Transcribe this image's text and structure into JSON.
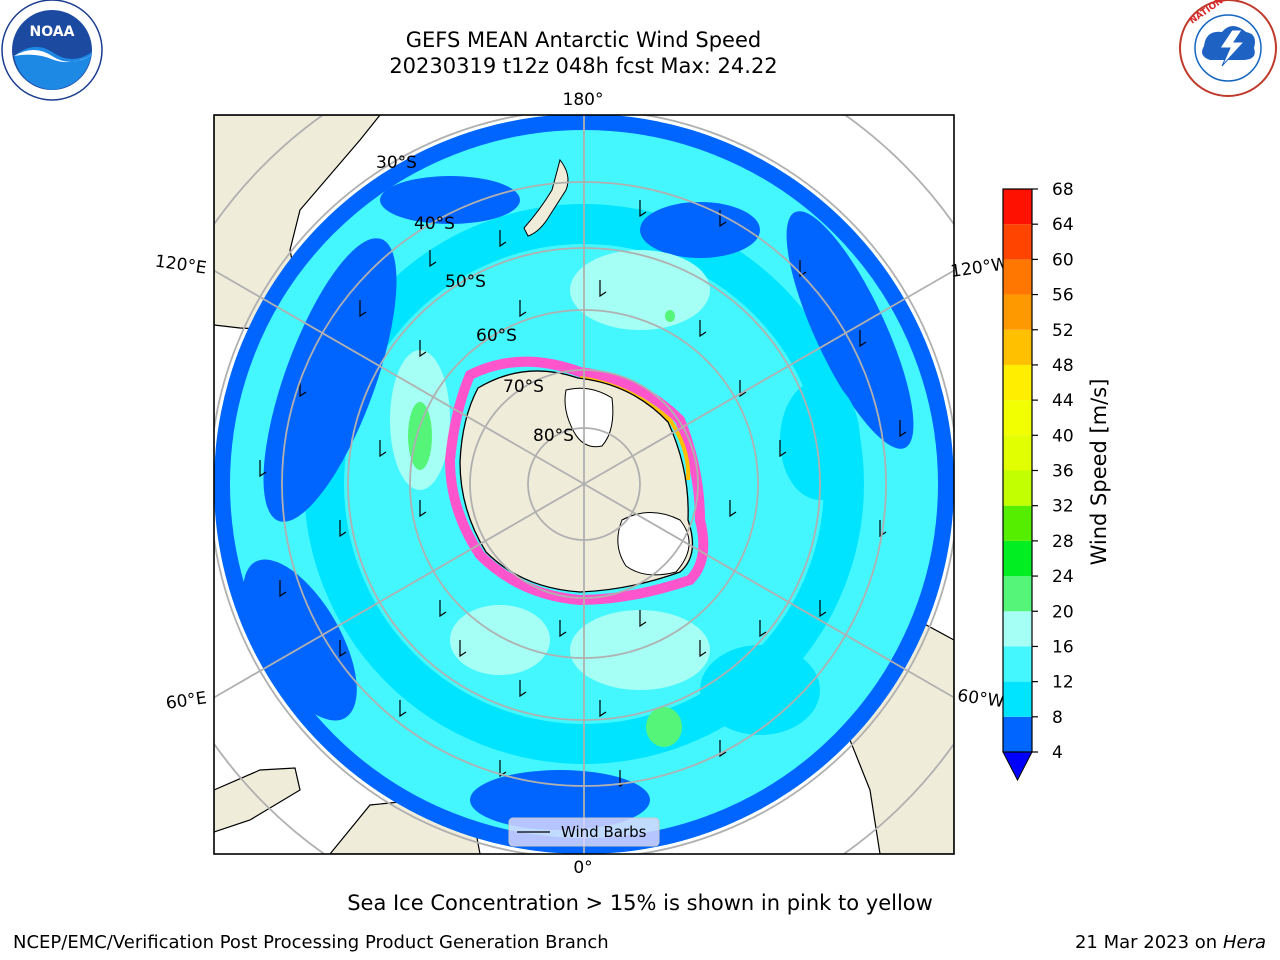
{
  "title": {
    "line1": "GEFS MEAN Antarctic Wind Speed",
    "line2": "20230319 t12z 048h fcst   Max: 24.22"
  },
  "logos": {
    "left": {
      "icon": "noaa-logo-icon",
      "text": "NOAA"
    },
    "right": {
      "icon": "nws-logo-icon",
      "text": "NATIONAL WEATHER SERVICE"
    }
  },
  "map": {
    "projection": "south-polar-stereographic",
    "longitude_labels": [
      "180°",
      "120°E",
      "120°W",
      "60°E",
      "60°W",
      "0°"
    ],
    "latitude_labels": [
      "30°S",
      "40°S",
      "50°S",
      "60°S",
      "70°S",
      "80°S"
    ],
    "legend": {
      "label": "Wind Barbs"
    },
    "colors": {
      "land": "#efecda",
      "ice_shelf": "#ffffff",
      "gridline": "#b0b0b0",
      "sea_ice_edge": "#ff55cc"
    }
  },
  "colorbar": {
    "label": "Wind Speed [m/s]",
    "ticks": [
      "4",
      "8",
      "12",
      "16",
      "20",
      "24",
      "28",
      "32",
      "36",
      "40",
      "44",
      "48",
      "52",
      "56",
      "60",
      "64",
      "68"
    ],
    "under_color": "#0000ff",
    "bins": [
      {
        "from": 4,
        "to": 8,
        "color": "#0064ff"
      },
      {
        "from": 8,
        "to": 12,
        "color": "#00e4ff"
      },
      {
        "from": 12,
        "to": 16,
        "color": "#44f7ff"
      },
      {
        "from": 16,
        "to": 20,
        "color": "#a6fff4"
      },
      {
        "from": 20,
        "to": 24,
        "color": "#55f57a"
      },
      {
        "from": 24,
        "to": 28,
        "color": "#00ee22"
      },
      {
        "from": 28,
        "to": 32,
        "color": "#55ee00"
      },
      {
        "from": 32,
        "to": 36,
        "color": "#c2ff00"
      },
      {
        "from": 36,
        "to": 40,
        "color": "#e1ff00"
      },
      {
        "from": 40,
        "to": 44,
        "color": "#f2ff00"
      },
      {
        "from": 44,
        "to": 48,
        "color": "#ffee00"
      },
      {
        "from": 48,
        "to": 52,
        "color": "#ffc000"
      },
      {
        "from": 52,
        "to": 56,
        "color": "#ff9900"
      },
      {
        "from": 56,
        "to": 60,
        "color": "#ff7700"
      },
      {
        "from": 60,
        "to": 64,
        "color": "#ff4400"
      },
      {
        "from": 64,
        "to": 68,
        "color": "#ff1100"
      }
    ]
  },
  "footer": {
    "note": "Sea Ice Concentration > 15% is shown in pink to yellow",
    "org": "NCEP/EMC/Verification Post Processing Product Generation Branch",
    "date": "21 Mar 2023 on",
    "host": "Hera"
  }
}
